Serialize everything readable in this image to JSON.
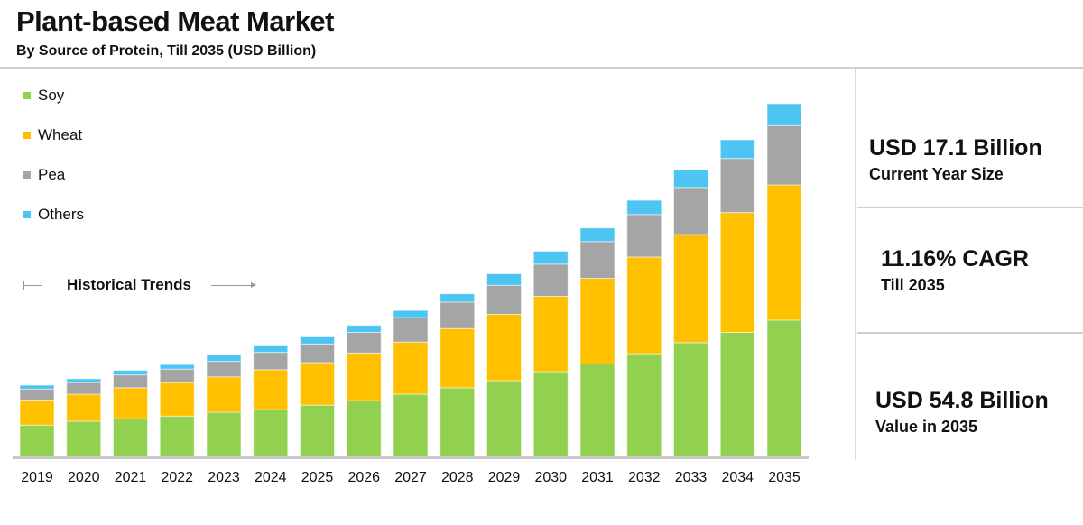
{
  "header": {
    "title": "Plant-based Meat Market",
    "subtitle": "By Source of Protein, Till 2035 (USD Billion)"
  },
  "annotation": "Historical Trends",
  "stats": [
    {
      "value": "USD 17.1 Billion",
      "label": "Current Year Size"
    },
    {
      "value": "11.16% CAGR",
      "label": "Till 2035"
    },
    {
      "value": "USD 54.8 Billion",
      "label": "Value in 2035"
    }
  ],
  "chart_data": {
    "type": "bar",
    "stacked": true,
    "title": "Plant-based Meat Market",
    "subtitle": "By Source of Protein, Till 2035 (USD Billion)",
    "xlabel": "",
    "ylabel": "",
    "y_axis_shown": false,
    "grid": false,
    "legend_position": "top-left",
    "ylim": [
      0,
      55
    ],
    "categories": [
      "2019",
      "2020",
      "2021",
      "2022",
      "2023",
      "2024",
      "2025",
      "2026",
      "2027",
      "2028",
      "2029",
      "2030",
      "2031",
      "2032",
      "2033",
      "2034",
      "2035"
    ],
    "series": [
      {
        "name": "Soy",
        "color": "#92d050",
        "values": [
          5.0,
          5.6,
          6.0,
          6.4,
          7.0,
          7.4,
          8.1,
          8.8,
          9.8,
          10.8,
          11.9,
          13.3,
          14.5,
          16.1,
          17.8,
          19.4,
          21.3
        ]
      },
      {
        "name": "Wheat",
        "color": "#ffc000",
        "values": [
          3.9,
          4.2,
          4.8,
          5.2,
          5.5,
          6.2,
          6.6,
          7.4,
          8.1,
          9.2,
          10.3,
          11.7,
          13.3,
          15.0,
          16.8,
          18.6,
          21.0
        ]
      },
      {
        "name": "Pea",
        "color": "#a5a5a5",
        "values": [
          1.7,
          1.8,
          2.0,
          2.1,
          2.4,
          2.7,
          2.9,
          3.2,
          3.8,
          4.1,
          4.5,
          5.0,
          5.7,
          6.6,
          7.3,
          8.4,
          9.2
        ]
      },
      {
        "name": "Others",
        "color": "#4cc5f2",
        "values": [
          0.6,
          0.6,
          0.7,
          0.7,
          1.0,
          1.0,
          1.1,
          1.1,
          1.1,
          1.3,
          1.8,
          2.0,
          2.1,
          2.2,
          2.7,
          2.9,
          3.4
        ]
      }
    ]
  }
}
